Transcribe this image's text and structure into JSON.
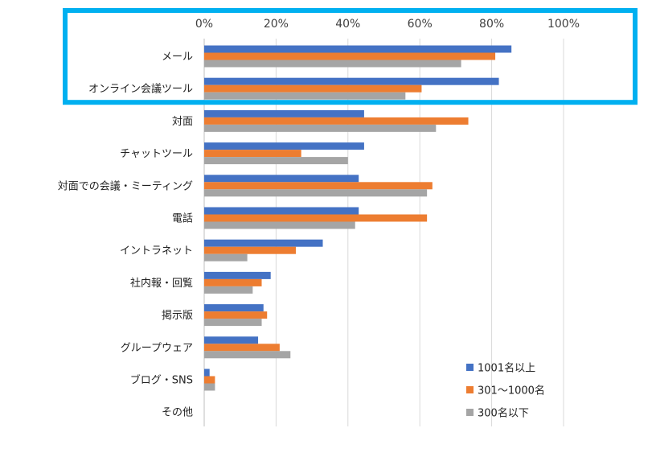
{
  "chart_data": {
    "type": "bar",
    "orientation": "horizontal",
    "title": "",
    "xlabel": "",
    "ylabel": "",
    "xlim": [
      0,
      100
    ],
    "x_ticks": [
      "0%",
      "20%",
      "40%",
      "60%",
      "80%",
      "100%"
    ],
    "grid": true,
    "legend_position": "bottom-right",
    "categories": [
      "メール",
      "オンライン会議ツール",
      "対面",
      "チャットツール",
      "対面での会議・ミーティング",
      "電話",
      "イントラネット",
      "社内報・回覧",
      "掲示版",
      "グループウェア",
      "ブログ・SNS",
      "その他"
    ],
    "series": [
      {
        "name": "1001名以上",
        "color": "#4472C4",
        "values": [
          85.5,
          82,
          44.5,
          44.5,
          43,
          43,
          33,
          18.5,
          16.5,
          15,
          1.5,
          0
        ]
      },
      {
        "name": "301～1000名",
        "color": "#ED7D31",
        "values": [
          81,
          60.5,
          73.5,
          27,
          63.5,
          62,
          25.5,
          16,
          17.5,
          21,
          3,
          0
        ]
      },
      {
        "name": "300名以下",
        "color": "#A5A5A5",
        "values": [
          71.5,
          56,
          64.5,
          40,
          62,
          42,
          12,
          13.5,
          16,
          24,
          3,
          0
        ]
      }
    ],
    "highlight_color": "#00B0F0",
    "highlighted_categories": [
      "メール",
      "オンライン会議ツール"
    ]
  }
}
